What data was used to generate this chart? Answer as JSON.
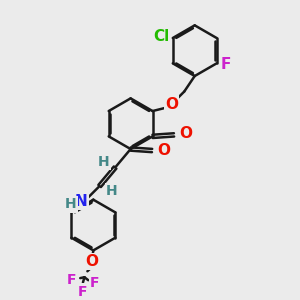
{
  "bg_color": "#ebebeb",
  "bond_color": "#1a1a1a",
  "bond_width": 1.8,
  "dbo": 0.055,
  "r": 0.85,
  "colors": {
    "Cl": "#22bb00",
    "F": "#cc22cc",
    "O": "#ee1100",
    "N": "#2222ee",
    "H": "#448888",
    "C": "#1a1a1a"
  }
}
